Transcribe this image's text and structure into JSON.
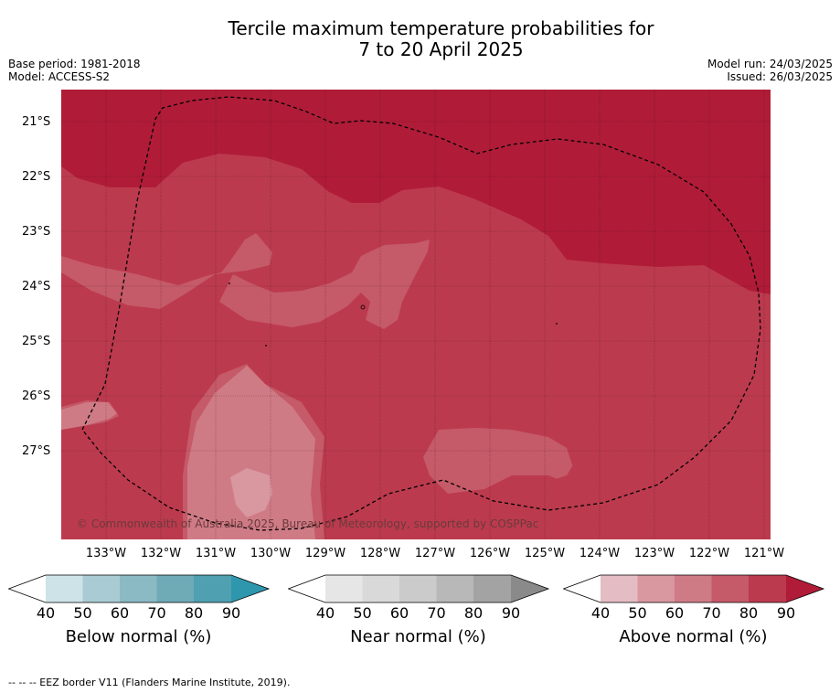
{
  "title_line1": "Tercile maximum temperature probabilities for",
  "title_line2": "7 to 20 April 2025",
  "base_period": "Base period: 1981-2018",
  "model": "Model: ACCESS-S2",
  "model_run": "Model run: 24/03/2025",
  "issued": "Issued: 26/03/2025",
  "credit": "© Commonwealth of Australia 2025, Bureau of Meteorology, supported by COSPPac",
  "lat_labels": [
    "21°S",
    "22°S",
    "23°S",
    "24°S",
    "25°S",
    "26°S",
    "27°S"
  ],
  "lon_labels": [
    "133°W",
    "132°W",
    "131°W",
    "130°W",
    "129°W",
    "128°W",
    "127°W",
    "126°W",
    "125°W",
    "124°W",
    "123°W",
    "122°W",
    "121°W"
  ],
  "colorbars": [
    {
      "label": "Below normal (%)",
      "ticks": [
        "40",
        "50",
        "60",
        "70",
        "80",
        "90"
      ],
      "colors": [
        "#ffffff",
        "#cde3e8",
        "#a9cbd3",
        "#8bb9c4",
        "#6faab7",
        "#4fa0b1",
        "#2f97ad"
      ]
    },
    {
      "label": "Near normal (%)",
      "ticks": [
        "40",
        "50",
        "60",
        "70",
        "80",
        "90"
      ],
      "colors": [
        "#ffffff",
        "#e6e6e6",
        "#d9d9d9",
        "#cbcbcb",
        "#b8b8b8",
        "#a3a3a3",
        "#8a8a8a"
      ]
    },
    {
      "label": "Above normal (%)",
      "ticks": [
        "40",
        "50",
        "60",
        "70",
        "80",
        "90"
      ],
      "colors": [
        "#ffffff",
        "#e4bcc3",
        "#d9979f",
        "#cf7b86",
        "#c55a68",
        "#bc3a4e",
        "#b01c38"
      ]
    }
  ],
  "footnote": "--  --  -- EEZ border V11 (Flanders Marine Institute, 2019).",
  "map_colors": {
    "p90": "#b01c38",
    "p80": "#bc3a4e",
    "p70": "#c55a68",
    "p60": "#cf7b86",
    "p50": "#d9979f"
  }
}
